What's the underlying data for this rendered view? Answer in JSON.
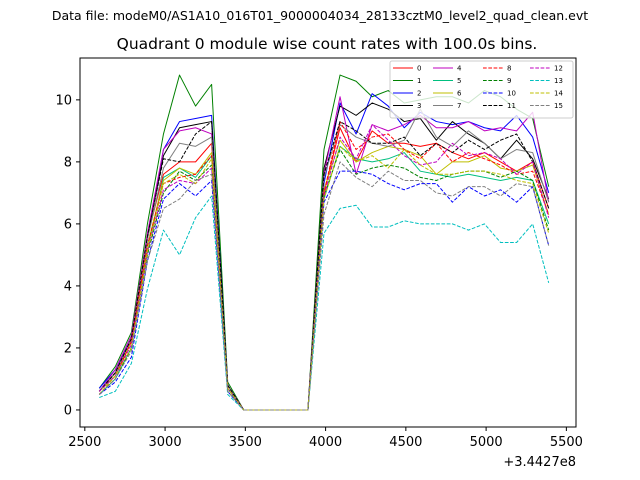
{
  "chart_data": {
    "type": "line",
    "suptitle": "Data file: modeM0/AS1A10_016T01_9000004034_28133cztM0_level2_quad_clean.evt",
    "title": "Quadrant 0 module wise count rates with 100.0s bins.",
    "xlabel": "",
    "ylabel": "",
    "x_offset_label": "+3.4427e8",
    "xlim": [
      2470,
      5560
    ],
    "ylim": [
      -0.55,
      11.35
    ],
    "x_ticks": [
      2500,
      3000,
      3500,
      4000,
      4500,
      5000,
      5500
    ],
    "y_ticks": [
      0,
      2,
      4,
      6,
      8,
      10
    ],
    "x": [
      2590,
      2690,
      2790,
      2890,
      2990,
      3090,
      3190,
      3290,
      3390,
      3490,
      3590,
      3690,
      3790,
      3890,
      3990,
      4090,
      4190,
      4290,
      4390,
      4490,
      4590,
      4690,
      4790,
      4890,
      4990,
      5090,
      5190,
      5290,
      5390
    ],
    "legend_location": "upper right",
    "series": [
      {
        "name": "0",
        "color": "#ff0000",
        "dash": "solid",
        "values": [
          0.6,
          1.2,
          2.3,
          5.6,
          7.6,
          8.0,
          8.0,
          8.6,
          0.7,
          0.0,
          0.0,
          0.0,
          0.0,
          0.0,
          7.0,
          9.1,
          8.0,
          9.0,
          8.6,
          8.6,
          8.5,
          8.6,
          8.3,
          8.1,
          8.3,
          8.0,
          7.7,
          8.0,
          6.5
        ]
      },
      {
        "name": "1",
        "color": "#008000",
        "dash": "solid",
        "values": [
          0.7,
          1.4,
          2.5,
          6.0,
          8.9,
          10.8,
          9.8,
          10.5,
          0.9,
          0.0,
          0.0,
          0.0,
          0.0,
          0.0,
          8.4,
          10.8,
          10.6,
          10.1,
          10.3,
          9.9,
          10.0,
          10.1,
          10.1,
          9.9,
          10.3,
          10.1,
          9.7,
          9.4,
          7.2
        ]
      },
      {
        "name": "2",
        "color": "#0000ff",
        "dash": "solid",
        "values": [
          0.7,
          1.3,
          2.3,
          5.5,
          8.4,
          9.3,
          9.4,
          9.5,
          0.8,
          0.0,
          0.0,
          0.0,
          0.0,
          0.0,
          7.3,
          9.9,
          8.9,
          10.2,
          9.8,
          9.1,
          9.6,
          9.3,
          9.2,
          9.3,
          9.1,
          9.0,
          9.5,
          8.8,
          7.0
        ]
      },
      {
        "name": "3",
        "color": "#000000",
        "dash": "solid",
        "values": [
          0.6,
          1.2,
          2.3,
          5.6,
          8.2,
          9.1,
          9.2,
          9.3,
          0.8,
          0.0,
          0.0,
          0.0,
          0.0,
          0.0,
          7.8,
          9.8,
          9.5,
          9.9,
          9.7,
          9.3,
          9.4,
          8.7,
          9.3,
          8.9,
          8.6,
          8.1,
          8.7,
          8.1,
          6.8
        ]
      },
      {
        "name": "4",
        "color": "#bf00bf",
        "dash": "solid",
        "values": [
          0.6,
          1.3,
          2.4,
          5.7,
          8.4,
          9.0,
          9.1,
          8.9,
          0.8,
          0.0,
          0.0,
          0.0,
          0.0,
          0.0,
          7.6,
          10.1,
          7.6,
          9.2,
          9.0,
          9.2,
          9.5,
          9.1,
          9.1,
          9.3,
          9.0,
          9.1,
          9.0,
          9.6,
          6.7
        ]
      },
      {
        "name": "5",
        "color": "#00bf7f",
        "dash": "solid",
        "values": [
          0.5,
          1.0,
          2.0,
          5.1,
          7.5,
          7.8,
          7.5,
          8.2,
          0.7,
          0.0,
          0.0,
          0.0,
          0.0,
          0.0,
          6.8,
          8.5,
          8.1,
          8.0,
          8.1,
          8.3,
          7.7,
          7.6,
          7.5,
          7.6,
          7.5,
          7.4,
          7.5,
          7.4,
          6.0
        ]
      },
      {
        "name": "6",
        "color": "#bfbf00",
        "dash": "solid",
        "values": [
          0.6,
          1.1,
          2.2,
          5.3,
          7.4,
          7.8,
          7.6,
          8.3,
          0.7,
          0.0,
          0.0,
          0.0,
          0.0,
          0.0,
          7.1,
          8.7,
          8.0,
          8.3,
          8.5,
          8.4,
          8.2,
          7.6,
          8.0,
          8.0,
          8.2,
          7.8,
          7.7,
          7.9,
          6.3
        ]
      },
      {
        "name": "7",
        "color": "#808080",
        "dash": "solid",
        "values": [
          0.6,
          1.2,
          2.3,
          5.5,
          7.8,
          8.6,
          8.5,
          8.8,
          0.8,
          0.0,
          0.0,
          0.0,
          0.0,
          0.0,
          7.5,
          9.2,
          8.8,
          8.6,
          8.5,
          8.7,
          9.7,
          8.8,
          8.5,
          9.0,
          8.6,
          8.1,
          8.4,
          8.3,
          6.7
        ]
      },
      {
        "name": "8",
        "color": "#ff0000",
        "dash": "dashed",
        "values": [
          0.5,
          1.1,
          2.2,
          5.3,
          7.3,
          7.5,
          7.6,
          8.2,
          0.7,
          0.0,
          0.0,
          0.0,
          0.0,
          0.0,
          7.0,
          9.3,
          8.4,
          8.8,
          8.9,
          8.4,
          8.1,
          8.6,
          8.0,
          8.3,
          8.1,
          7.9,
          7.6,
          7.7,
          6.3
        ]
      },
      {
        "name": "9",
        "color": "#008000",
        "dash": "dashed",
        "values": [
          0.5,
          1.0,
          2.0,
          5.0,
          7.0,
          7.7,
          7.4,
          7.9,
          0.7,
          0.0,
          0.0,
          0.0,
          0.0,
          0.0,
          6.9,
          8.4,
          7.6,
          7.8,
          7.9,
          7.8,
          7.5,
          7.4,
          7.6,
          7.7,
          7.7,
          7.5,
          7.7,
          7.4,
          5.8
        ]
      },
      {
        "name": "10",
        "color": "#0000ff",
        "dash": "dashed",
        "values": [
          0.5,
          0.9,
          1.7,
          4.8,
          6.8,
          7.3,
          6.9,
          7.4,
          0.6,
          0.0,
          0.0,
          0.0,
          0.0,
          0.0,
          6.7,
          7.7,
          7.7,
          7.6,
          7.3,
          7.1,
          7.3,
          7.3,
          6.7,
          7.2,
          6.9,
          7.1,
          6.7,
          7.2,
          5.3
        ]
      },
      {
        "name": "11",
        "color": "#000000",
        "dash": "dashed",
        "values": [
          0.6,
          1.2,
          2.3,
          5.6,
          8.1,
          8.0,
          8.9,
          9.3,
          0.8,
          0.0,
          0.0,
          0.0,
          0.0,
          0.0,
          7.6,
          9.3,
          9.0,
          8.6,
          8.6,
          8.8,
          8.2,
          8.6,
          8.3,
          8.7,
          8.4,
          8.7,
          8.9,
          8.0,
          6.5
        ]
      },
      {
        "name": "12",
        "color": "#bf00bf",
        "dash": "dashed",
        "values": [
          0.6,
          1.1,
          2.1,
          5.1,
          7.1,
          7.4,
          7.3,
          7.8,
          0.7,
          0.0,
          0.0,
          0.0,
          0.0,
          0.0,
          6.9,
          8.8,
          8.1,
          9.2,
          8.7,
          8.2,
          7.9,
          8.0,
          8.6,
          8.2,
          8.3,
          8.1,
          7.6,
          8.0,
          6.2
        ]
      },
      {
        "name": "13",
        "color": "#00bfbf",
        "dash": "dashed",
        "values": [
          0.4,
          0.6,
          1.5,
          3.9,
          5.8,
          5.0,
          6.2,
          6.9,
          0.5,
          0.0,
          0.0,
          0.0,
          0.0,
          0.0,
          5.7,
          6.5,
          6.6,
          5.9,
          5.9,
          6.1,
          6.0,
          6.0,
          6.0,
          5.8,
          6.0,
          5.4,
          5.4,
          6.0,
          4.1
        ]
      },
      {
        "name": "14",
        "color": "#bfbf00",
        "dash": "dashed",
        "values": [
          0.5,
          1.1,
          2.0,
          5.1,
          7.3,
          7.6,
          7.3,
          8.1,
          0.7,
          0.0,
          0.0,
          0.0,
          0.0,
          0.0,
          6.8,
          8.5,
          8.0,
          8.2,
          7.8,
          8.4,
          7.9,
          7.6,
          7.6,
          7.7,
          7.7,
          7.6,
          7.4,
          7.3,
          5.7
        ]
      },
      {
        "name": "15",
        "color": "#808080",
        "dash": "dashed",
        "values": [
          0.5,
          1.0,
          1.9,
          4.8,
          6.5,
          6.8,
          7.4,
          7.6,
          0.6,
          0.0,
          0.0,
          0.0,
          0.0,
          0.0,
          6.3,
          8.0,
          7.5,
          7.2,
          7.7,
          7.4,
          7.4,
          7.0,
          6.9,
          7.2,
          7.2,
          6.9,
          7.3,
          7.2,
          5.3
        ]
      }
    ]
  }
}
